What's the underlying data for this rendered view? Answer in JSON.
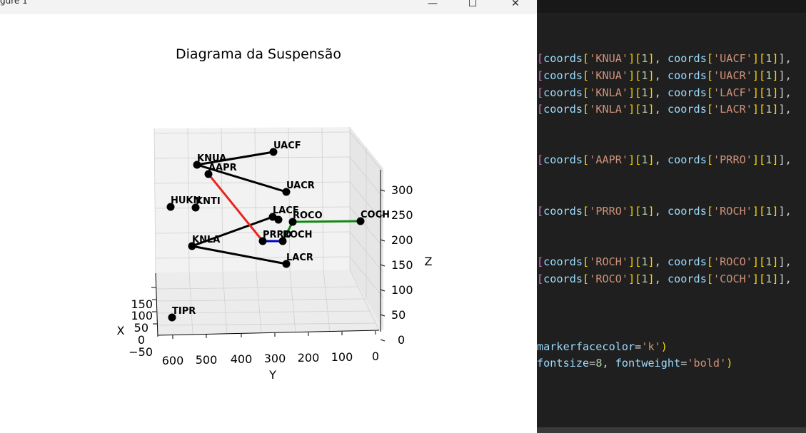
{
  "figure_window": {
    "title": "gure 1",
    "controls": {
      "minimize": "—",
      "maximize": "☐",
      "close": "✕"
    }
  },
  "plot": {
    "title": "Diagrama da Suspensão",
    "x_axis": {
      "label": "X",
      "ticks": [
        "150",
        "100",
        "50",
        "0",
        "−50"
      ]
    },
    "y_axis": {
      "label": "Y",
      "ticks": [
        "600",
        "500",
        "400",
        "300",
        "200",
        "100",
        "0"
      ]
    },
    "z_axis": {
      "label": "Z",
      "ticks": [
        "300",
        "250",
        "200",
        "150",
        "100",
        "50",
        "0"
      ]
    },
    "point_color": "#000000",
    "points": [
      "KNUA",
      "UACF",
      "AAPR",
      "UACR",
      "HUKN",
      "KNTI",
      "LACF",
      "ROCO",
      "COCH",
      "KNLA",
      "PRRO",
      "ROCH",
      "LACR",
      "TIPR"
    ],
    "links": [
      {
        "from": "KNUA",
        "to": "UACF",
        "color": "#000000"
      },
      {
        "from": "KNUA",
        "to": "UACR",
        "color": "#000000"
      },
      {
        "from": "KNLA",
        "to": "LACF",
        "color": "#000000"
      },
      {
        "from": "KNLA",
        "to": "LACR",
        "color": "#000000"
      },
      {
        "from": "AAPR",
        "to": "PRRO",
        "color": "#e8261e"
      },
      {
        "from": "PRRO",
        "to": "ROCH",
        "color": "#0000c8"
      },
      {
        "from": "ROCH",
        "to": "ROCO",
        "color": "#118811"
      },
      {
        "from": "ROCO",
        "to": "COCH",
        "color": "#118811"
      }
    ]
  },
  "editor": {
    "lines": [
      [
        [
          "[",
          "b1"
        ],
        [
          "coords",
          "var"
        ],
        [
          "[",
          "b2"
        ],
        [
          "'KNUA'",
          "str"
        ],
        [
          "]",
          "b2"
        ],
        [
          "[",
          "b2"
        ],
        [
          "1",
          "num"
        ],
        [
          "]",
          "b2"
        ],
        [
          ", ",
          "pun"
        ],
        [
          "coords",
          "var"
        ],
        [
          "[",
          "b2"
        ],
        [
          "'UACF'",
          "str"
        ],
        [
          "]",
          "b2"
        ],
        [
          "[",
          "b2"
        ],
        [
          "1",
          "num"
        ],
        [
          "]",
          "b2"
        ],
        [
          "],",
          "pun"
        ]
      ],
      [
        [
          "[",
          "b1"
        ],
        [
          "coords",
          "var"
        ],
        [
          "[",
          "b2"
        ],
        [
          "'KNUA'",
          "str"
        ],
        [
          "]",
          "b2"
        ],
        [
          "[",
          "b2"
        ],
        [
          "1",
          "num"
        ],
        [
          "]",
          "b2"
        ],
        [
          ", ",
          "pun"
        ],
        [
          "coords",
          "var"
        ],
        [
          "[",
          "b2"
        ],
        [
          "'UACR'",
          "str"
        ],
        [
          "]",
          "b2"
        ],
        [
          "[",
          "b2"
        ],
        [
          "1",
          "num"
        ],
        [
          "]",
          "b2"
        ],
        [
          "],",
          "pun"
        ]
      ],
      [
        [
          "[",
          "b1"
        ],
        [
          "coords",
          "var"
        ],
        [
          "[",
          "b2"
        ],
        [
          "'KNLA'",
          "str"
        ],
        [
          "]",
          "b2"
        ],
        [
          "[",
          "b2"
        ],
        [
          "1",
          "num"
        ],
        [
          "]",
          "b2"
        ],
        [
          ", ",
          "pun"
        ],
        [
          "coords",
          "var"
        ],
        [
          "[",
          "b2"
        ],
        [
          "'LACF'",
          "str"
        ],
        [
          "]",
          "b2"
        ],
        [
          "[",
          "b2"
        ],
        [
          "1",
          "num"
        ],
        [
          "]",
          "b2"
        ],
        [
          "],",
          "pun"
        ]
      ],
      [
        [
          "[",
          "b1"
        ],
        [
          "coords",
          "var"
        ],
        [
          "[",
          "b2"
        ],
        [
          "'KNLA'",
          "str"
        ],
        [
          "]",
          "b2"
        ],
        [
          "[",
          "b2"
        ],
        [
          "1",
          "num"
        ],
        [
          "]",
          "b2"
        ],
        [
          ", ",
          "pun"
        ],
        [
          "coords",
          "var"
        ],
        [
          "[",
          "b2"
        ],
        [
          "'LACR'",
          "str"
        ],
        [
          "]",
          "b2"
        ],
        [
          "[",
          "b2"
        ],
        [
          "1",
          "num"
        ],
        [
          "]",
          "b2"
        ],
        [
          "],",
          "pun"
        ]
      ],
      [
        [
          "[",
          "b1"
        ],
        [
          "coords",
          "var"
        ],
        [
          "[",
          "b2"
        ],
        [
          "'AAPR'",
          "str"
        ],
        [
          "]",
          "b2"
        ],
        [
          "[",
          "b2"
        ],
        [
          "1",
          "num"
        ],
        [
          "]",
          "b2"
        ],
        [
          ", ",
          "pun"
        ],
        [
          "coords",
          "var"
        ],
        [
          "[",
          "b2"
        ],
        [
          "'PRRO'",
          "str"
        ],
        [
          "]",
          "b2"
        ],
        [
          "[",
          "b2"
        ],
        [
          "1",
          "num"
        ],
        [
          "]",
          "b2"
        ],
        [
          "],",
          "pun"
        ]
      ],
      [
        [
          "[",
          "b1"
        ],
        [
          "coords",
          "var"
        ],
        [
          "[",
          "b2"
        ],
        [
          "'PRRO'",
          "str"
        ],
        [
          "]",
          "b2"
        ],
        [
          "[",
          "b2"
        ],
        [
          "1",
          "num"
        ],
        [
          "]",
          "b2"
        ],
        [
          ", ",
          "pun"
        ],
        [
          "coords",
          "var"
        ],
        [
          "[",
          "b2"
        ],
        [
          "'ROCH'",
          "str"
        ],
        [
          "]",
          "b2"
        ],
        [
          "[",
          "b2"
        ],
        [
          "1",
          "num"
        ],
        [
          "]",
          "b2"
        ],
        [
          "],",
          "pun"
        ]
      ],
      [
        [
          "[",
          "b1"
        ],
        [
          "coords",
          "var"
        ],
        [
          "[",
          "b2"
        ],
        [
          "'ROCH'",
          "str"
        ],
        [
          "]",
          "b2"
        ],
        [
          "[",
          "b2"
        ],
        [
          "1",
          "num"
        ],
        [
          "]",
          "b2"
        ],
        [
          ", ",
          "pun"
        ],
        [
          "coords",
          "var"
        ],
        [
          "[",
          "b2"
        ],
        [
          "'ROCO'",
          "str"
        ],
        [
          "]",
          "b2"
        ],
        [
          "[",
          "b2"
        ],
        [
          "1",
          "num"
        ],
        [
          "]",
          "b2"
        ],
        [
          "],",
          "pun"
        ]
      ],
      [
        [
          "[",
          "b1"
        ],
        [
          "coords",
          "var"
        ],
        [
          "[",
          "b2"
        ],
        [
          "'ROCO'",
          "str"
        ],
        [
          "]",
          "b2"
        ],
        [
          "[",
          "b2"
        ],
        [
          "1",
          "num"
        ],
        [
          "]",
          "b2"
        ],
        [
          ", ",
          "pun"
        ],
        [
          "coords",
          "var"
        ],
        [
          "[",
          "b2"
        ],
        [
          "'COCH'",
          "str"
        ],
        [
          "]",
          "b2"
        ],
        [
          "[",
          "b2"
        ],
        [
          "1",
          "num"
        ],
        [
          "]",
          "b2"
        ],
        [
          "],",
          "pun"
        ]
      ],
      [
        [
          "markerfacecolor",
          "var"
        ],
        [
          "=",
          "pun"
        ],
        [
          "'k'",
          "str"
        ],
        [
          ")",
          "b2"
        ]
      ],
      [
        [
          "fontsize",
          "var"
        ],
        [
          "=",
          "pun"
        ],
        [
          "8",
          "num"
        ],
        [
          ", ",
          "pun"
        ],
        [
          "fontweight",
          "var"
        ],
        [
          "=",
          "pun"
        ],
        [
          "'bold'",
          "str"
        ],
        [
          ")",
          "b2"
        ]
      ]
    ]
  }
}
